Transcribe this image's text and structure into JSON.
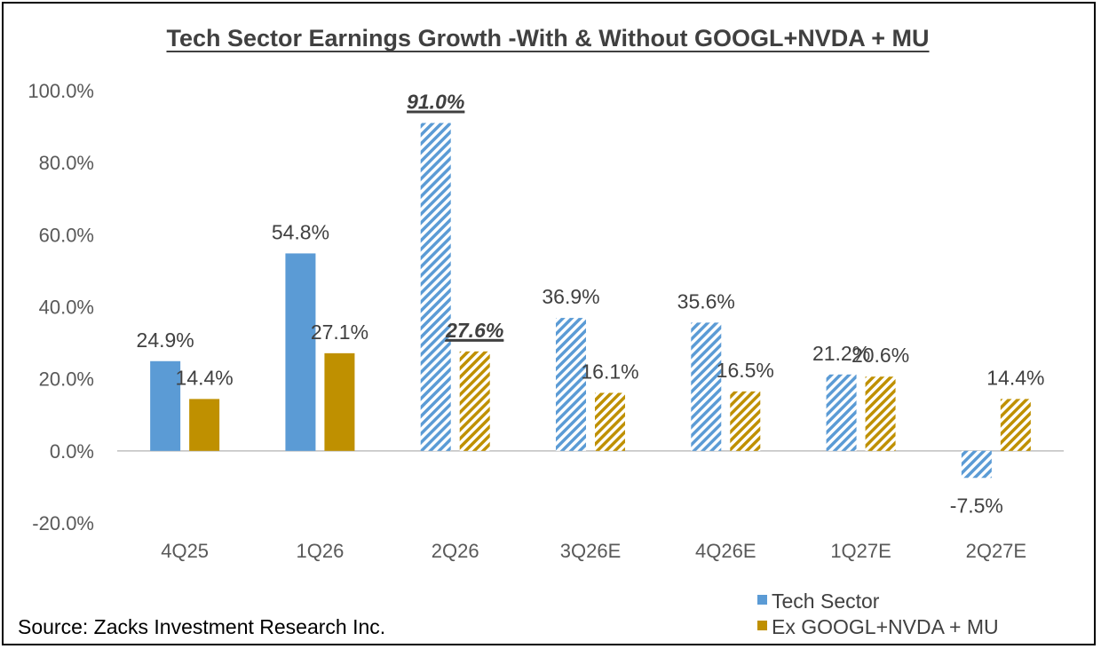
{
  "chart_data": {
    "type": "bar",
    "title": "Tech Sector Earnings Growth -With & Without GOOGL+NVDA + MU",
    "categories": [
      "4Q25",
      "1Q26",
      "2Q26",
      "3Q26E",
      "4Q26E",
      "1Q27E",
      "2Q27E"
    ],
    "series": [
      {
        "name": "Tech Sector",
        "color": "#5B9BD5",
        "values": [
          24.9,
          54.8,
          91.0,
          36.9,
          35.6,
          21.2,
          -7.5
        ],
        "labels": [
          "24.9%",
          "54.8%",
          "91.0%",
          "36.9%",
          "35.6%",
          "21.2%",
          "-7.5%"
        ],
        "hatched": [
          false,
          false,
          true,
          true,
          true,
          true,
          true
        ]
      },
      {
        "name": "Ex GOOGL+NVDA + MU",
        "color": "#BF9000",
        "values": [
          14.4,
          27.1,
          27.6,
          16.1,
          16.5,
          20.6,
          14.4
        ],
        "labels": [
          "14.4%",
          "27.1%",
          "27.6%",
          "16.1%",
          "16.5%",
          "20.6%",
          "14.4%"
        ],
        "hatched": [
          false,
          false,
          true,
          true,
          true,
          true,
          true
        ]
      }
    ],
    "emphasized_labels": [
      {
        "series": 0,
        "index": 2
      },
      {
        "series": 1,
        "index": 2
      }
    ],
    "ylim": [
      -20,
      100
    ],
    "yticks": [
      100,
      80,
      60,
      40,
      20,
      0,
      -20
    ],
    "ytick_labels": [
      "100.0%",
      "80.0%",
      "60.0%",
      "40.0%",
      "20.0%",
      "0.0%",
      "-20.0%"
    ],
    "xlabel": "",
    "ylabel": "",
    "grid": false,
    "legend": "bottom-right"
  },
  "source": "Source: Zacks Investment Research Inc."
}
